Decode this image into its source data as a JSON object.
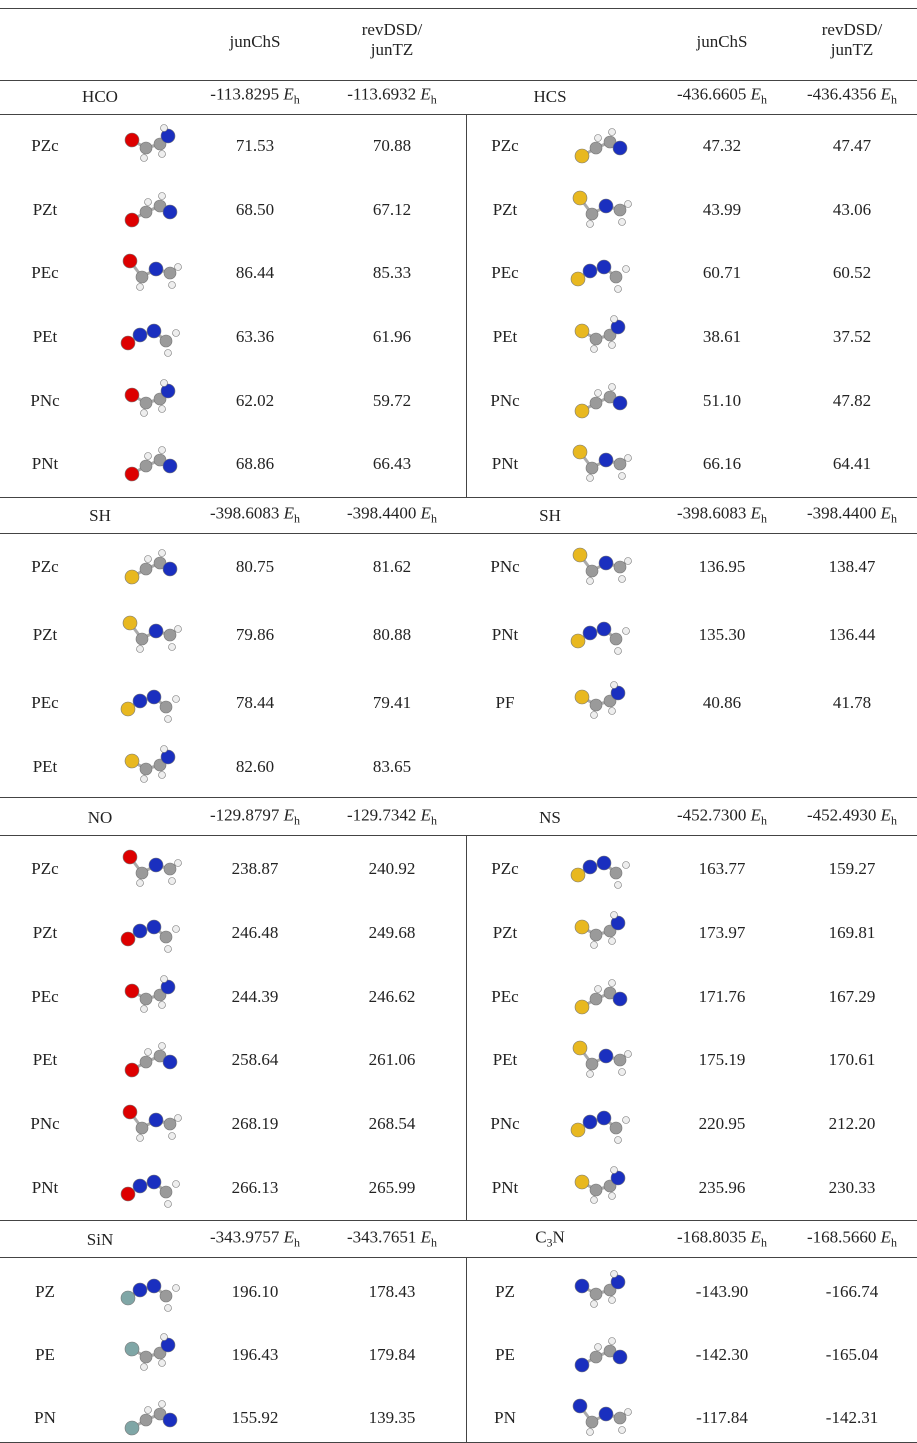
{
  "header": {
    "method1": "junChS",
    "method2": [
      "revDSD/",
      "junTZ"
    ]
  },
  "unit": {
    "symbol": "E",
    "sub": "h"
  },
  "sections": [
    {
      "left": {
        "name": "HCO",
        "energies": [
          "-113.8295",
          "-113.6932"
        ],
        "rows": [
          {
            "label": "PZc",
            "values": [
              "71.53",
              "70.88"
            ]
          },
          {
            "label": "PZt",
            "values": [
              "68.50",
              "67.12"
            ]
          },
          {
            "label": "PEc",
            "values": [
              "86.44",
              "85.33"
            ]
          },
          {
            "label": "PEt",
            "values": [
              "63.36",
              "61.96"
            ]
          },
          {
            "label": "PNc",
            "values": [
              "62.02",
              "59.72"
            ]
          },
          {
            "label": "PNt",
            "values": [
              "68.86",
              "66.43"
            ]
          }
        ]
      },
      "right": {
        "name": "HCS",
        "energies": [
          "-436.6605",
          "-436.4356"
        ],
        "rows": [
          {
            "label": "PZc",
            "values": [
              "47.32",
              "47.47"
            ]
          },
          {
            "label": "PZt",
            "values": [
              "43.99",
              "43.06"
            ]
          },
          {
            "label": "PEc",
            "values": [
              "60.71",
              "60.52"
            ]
          },
          {
            "label": "PEt",
            "values": [
              "38.61",
              "37.52"
            ]
          },
          {
            "label": "PNc",
            "values": [
              "51.10",
              "47.82"
            ]
          },
          {
            "label": "PNt",
            "values": [
              "66.16",
              "64.41"
            ]
          }
        ]
      }
    },
    {
      "left": {
        "name": "SH",
        "energies": [
          "-398.6083",
          "-398.4400"
        ],
        "rows": [
          {
            "label": "PZc",
            "values": [
              "80.75",
              "81.62"
            ]
          },
          {
            "label": "PZt",
            "values": [
              "79.86",
              "80.88"
            ]
          },
          {
            "label": "PEc",
            "values": [
              "78.44",
              "79.41"
            ]
          },
          {
            "label": "PEt",
            "values": [
              "82.60",
              "83.65"
            ]
          }
        ]
      },
      "right": {
        "name": "SH",
        "energies": [
          "-398.6083",
          "-398.4400"
        ],
        "rows": [
          {
            "label": "PNc",
            "values": [
              "136.95",
              "138.47"
            ]
          },
          {
            "label": "PNt",
            "values": [
              "135.30",
              "136.44"
            ]
          },
          {
            "label": "PF",
            "values": [
              "40.86",
              "41.78"
            ]
          }
        ]
      }
    },
    {
      "left": {
        "name": "NO",
        "energies": [
          "-129.8797",
          "-129.7342"
        ],
        "rows": [
          {
            "label": "PZc",
            "values": [
              "238.87",
              "240.92"
            ]
          },
          {
            "label": "PZt",
            "values": [
              "246.48",
              "249.68"
            ]
          },
          {
            "label": "PEc",
            "values": [
              "244.39",
              "246.62"
            ]
          },
          {
            "label": "PEt",
            "values": [
              "258.64",
              "261.06"
            ]
          },
          {
            "label": "PNc",
            "values": [
              "268.19",
              "268.54"
            ]
          },
          {
            "label": "PNt",
            "values": [
              "266.13",
              "265.99"
            ]
          }
        ]
      },
      "right": {
        "name": "NS",
        "energies": [
          "-452.7300",
          "-452.4930"
        ],
        "rows": [
          {
            "label": "PZc",
            "values": [
              "163.77",
              "159.27"
            ]
          },
          {
            "label": "PZt",
            "values": [
              "173.97",
              "169.81"
            ]
          },
          {
            "label": "PEc",
            "values": [
              "171.76",
              "167.29"
            ]
          },
          {
            "label": "PEt",
            "values": [
              "175.19",
              "170.61"
            ]
          },
          {
            "label": "PNc",
            "values": [
              "220.95",
              "212.20"
            ]
          },
          {
            "label": "PNt",
            "values": [
              "235.96",
              "230.33"
            ]
          }
        ]
      }
    },
    {
      "left": {
        "name": "SiN",
        "energies": [
          "-343.9757",
          "-343.7651"
        ],
        "rows": [
          {
            "label": "PZ",
            "values": [
              "196.10",
              "178.43"
            ]
          },
          {
            "label": "PE",
            "values": [
              "196.43",
              "179.84"
            ]
          },
          {
            "label": "PN",
            "values": [
              "155.92",
              "139.35"
            ]
          }
        ]
      },
      "right": {
        "name": [
          "C",
          "3",
          "N"
        ],
        "energies": [
          "-168.8035",
          "-168.5660"
        ],
        "rows": [
          {
            "label": "PZ",
            "values": [
              "-143.90",
              "-166.74"
            ]
          },
          {
            "label": "PE",
            "values": [
              "-142.30",
              "-165.04"
            ]
          },
          {
            "label": "PN",
            "values": [
              "-117.84",
              "-142.31"
            ]
          }
        ]
      }
    }
  ]
}
